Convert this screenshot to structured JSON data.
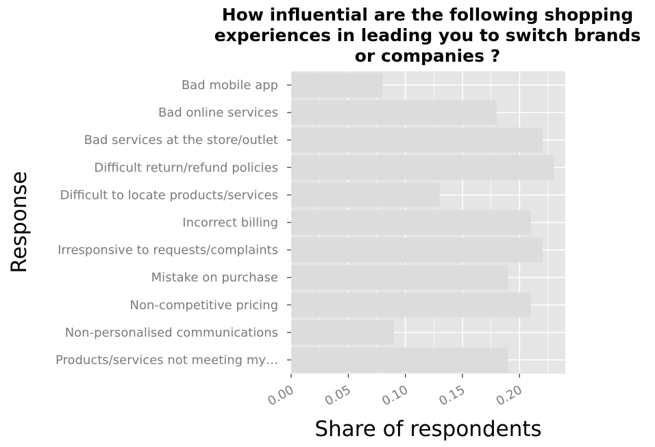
{
  "chart_data": {
    "type": "bar",
    "orientation": "horizontal",
    "title_lines": [
      "How influential are the following shopping",
      "experiences in leading you to switch brands",
      "or companies ?"
    ],
    "xlabel": "Share of respondents",
    "ylabel": "Response",
    "categories": [
      "Bad mobile app",
      "Bad online services",
      "Bad services at the store/outlet",
      "Difficult return/refund policies",
      "Difficult to locate products/services",
      "Incorrect billing",
      "Irresponsive to requests/complaints",
      "Mistake on purchase",
      "Non-competitive pricing",
      "Non-personalised communications",
      "Products/services not meeting my…"
    ],
    "values": [
      0.08,
      0.18,
      0.22,
      0.23,
      0.13,
      0.21,
      0.22,
      0.19,
      0.21,
      0.09,
      0.19
    ],
    "xlim": [
      0,
      0.24
    ],
    "xticks": [
      "0.00",
      "0.05",
      "0.10",
      "0.15",
      "0.20"
    ],
    "xtick_values": [
      0,
      0.05,
      0.1,
      0.15,
      0.2
    ],
    "grid": true,
    "colors": {
      "panel_background": "#e5e5e5",
      "bar": "#dcdcdc",
      "grid": "#ffffff",
      "tick_text": "#7a7a7a"
    }
  }
}
